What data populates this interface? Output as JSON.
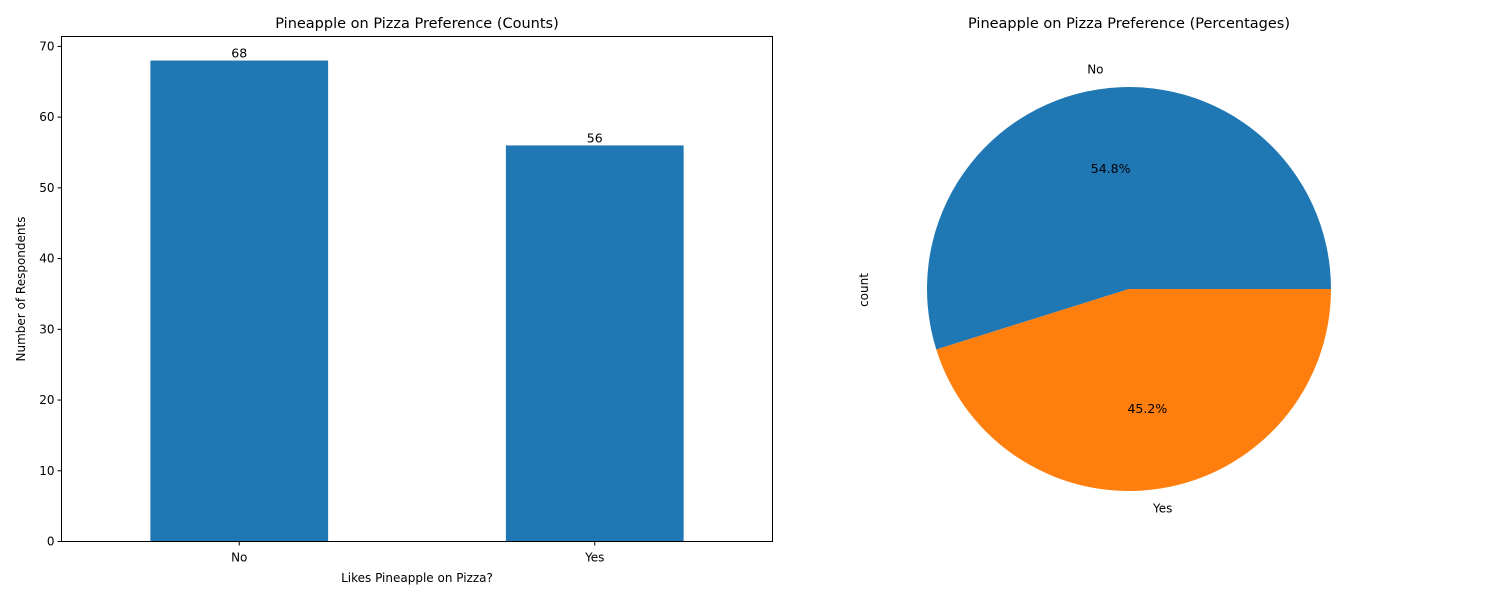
{
  "chart_data": [
    {
      "type": "bar",
      "title": "Pineapple on Pizza Preference (Counts)",
      "xlabel": "Likes Pineapple on Pizza?",
      "ylabel": "Number of Respondents",
      "categories": [
        "No",
        "Yes"
      ],
      "values": [
        68,
        56
      ],
      "data_labels": [
        "68",
        "56"
      ],
      "ylim": [
        0,
        71.4
      ],
      "yticks": [
        0,
        10,
        20,
        30,
        40,
        50,
        60,
        70
      ],
      "ytick_labels": [
        "0",
        "10",
        "20",
        "30",
        "40",
        "50",
        "60",
        "70"
      ],
      "color": "#1f77b4",
      "grid": false,
      "legend": "none"
    },
    {
      "type": "pie",
      "title": "Pineapple on Pizza Preference (Percentages)",
      "ylabel": "count",
      "labels": [
        "No",
        "Yes"
      ],
      "values": [
        68,
        56
      ],
      "percent_labels": [
        "54.8%",
        "45.2%"
      ],
      "colors": [
        "#1f77b4",
        "#ff7f0e"
      ],
      "legend": "none"
    }
  ]
}
